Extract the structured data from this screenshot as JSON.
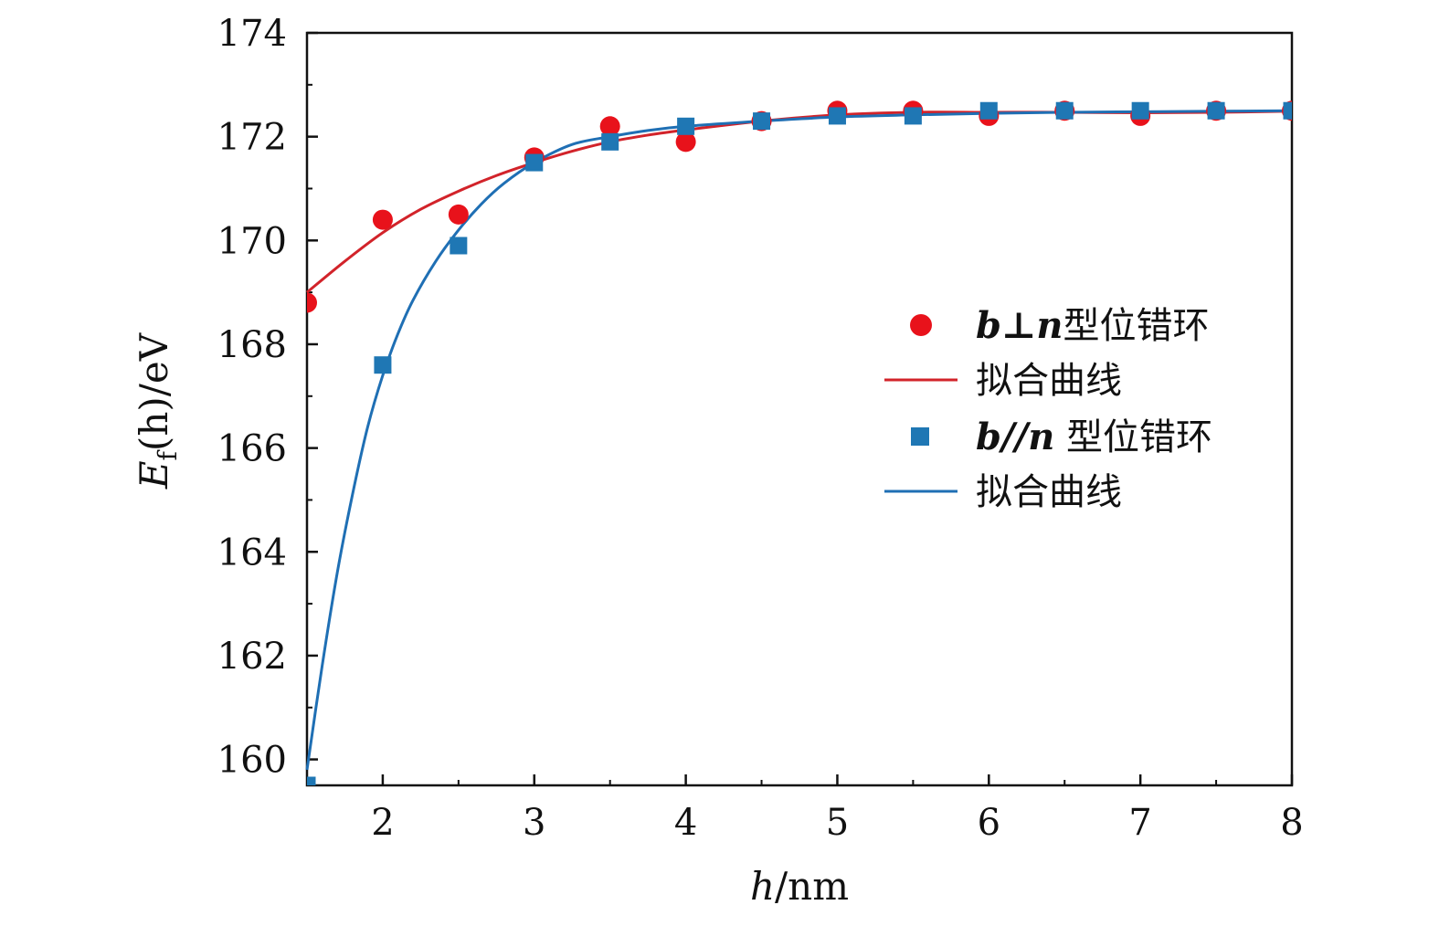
{
  "chart_data": {
    "type": "scatter",
    "title": "",
    "xlabel": "h/nm",
    "ylabel": "Ef(h)/eV",
    "xlim": [
      1.5,
      8
    ],
    "ylim": [
      159.5,
      174
    ],
    "xticks": [
      2,
      3,
      4,
      5,
      6,
      7,
      8
    ],
    "yticks": [
      160,
      162,
      164,
      166,
      168,
      170,
      172,
      174
    ],
    "xtick_labels": [
      "2",
      "3",
      "4",
      "5",
      "6",
      "7",
      "8"
    ],
    "ytick_labels": [
      "160",
      "162",
      "164",
      "166",
      "168",
      "170",
      "172",
      "174"
    ],
    "grid": false,
    "legend_position": "center-right",
    "series": [
      {
        "name": "b⊥n 型位错环",
        "symbol": "b⊥n",
        "suffix": "型位错环",
        "marker": "circle",
        "color": "#e8121b",
        "x": [
          1.5,
          2.0,
          2.5,
          3.0,
          3.5,
          4.0,
          4.5,
          5.0,
          5.5,
          6.0,
          6.5,
          7.0,
          7.5,
          8.0
        ],
        "values": [
          168.8,
          170.4,
          170.5,
          171.6,
          172.2,
          171.9,
          172.3,
          172.5,
          172.5,
          172.4,
          172.5,
          172.4,
          172.5,
          172.5
        ]
      },
      {
        "name": "拟合曲线",
        "kind": "fit-line",
        "color": "#d2232a",
        "x": [
          1.5,
          1.75,
          2.0,
          2.25,
          2.5,
          2.75,
          3.0,
          3.25,
          3.5,
          3.75,
          4.0,
          4.5,
          5.0,
          5.5,
          6.0,
          6.5,
          7.0,
          7.5,
          8.0
        ],
        "values": [
          169.0,
          169.6,
          170.15,
          170.6,
          170.95,
          171.25,
          171.5,
          171.72,
          171.9,
          172.03,
          172.13,
          172.3,
          172.42,
          172.47,
          172.47,
          172.47,
          172.46,
          172.47,
          172.49
        ]
      },
      {
        "name": "b//n 型位错环",
        "symbol": "b//n",
        "suffix": "型位错环",
        "marker": "square",
        "color": "#1f77b4",
        "x": [
          1.5,
          2.0,
          2.5,
          3.0,
          3.5,
          4.0,
          4.5,
          5.0,
          5.5,
          6.0,
          6.5,
          7.0,
          7.5,
          8.0
        ],
        "values": [
          159.5,
          167.6,
          169.9,
          171.5,
          171.9,
          172.2,
          172.3,
          172.4,
          172.4,
          172.5,
          172.5,
          172.5,
          172.5,
          172.5
        ]
      },
      {
        "name": "拟合曲线",
        "kind": "fit-line",
        "color": "#1f6fb4",
        "x": [
          1.5,
          1.6,
          1.7,
          1.8,
          1.9,
          2.0,
          2.1,
          2.2,
          2.35,
          2.5,
          2.65,
          2.8,
          3.0,
          3.25,
          3.5,
          3.75,
          4.0,
          4.5,
          5.0,
          5.5,
          6.0,
          6.5,
          7.0,
          7.5,
          8.0
        ],
        "values": [
          159.8,
          161.8,
          163.6,
          165.1,
          166.4,
          167.4,
          168.2,
          168.85,
          169.6,
          170.2,
          170.7,
          171.1,
          171.5,
          171.85,
          172.0,
          172.12,
          172.2,
          172.3,
          172.38,
          172.42,
          172.45,
          172.47,
          172.48,
          172.49,
          172.5
        ]
      }
    ]
  },
  "legend": {
    "items": [
      {
        "symbol": "b⊥n",
        "suffix": "型位错环"
      },
      {
        "label": "拟合曲线"
      },
      {
        "symbol": "b//n",
        "suffix": " 型位错环"
      },
      {
        "label": "拟合曲线"
      }
    ]
  },
  "axes": {
    "x_label_var": "h",
    "x_label_unit": "/nm",
    "y_label_var": "E",
    "y_label_sub": "f",
    "y_label_rest": "(h)/eV"
  }
}
